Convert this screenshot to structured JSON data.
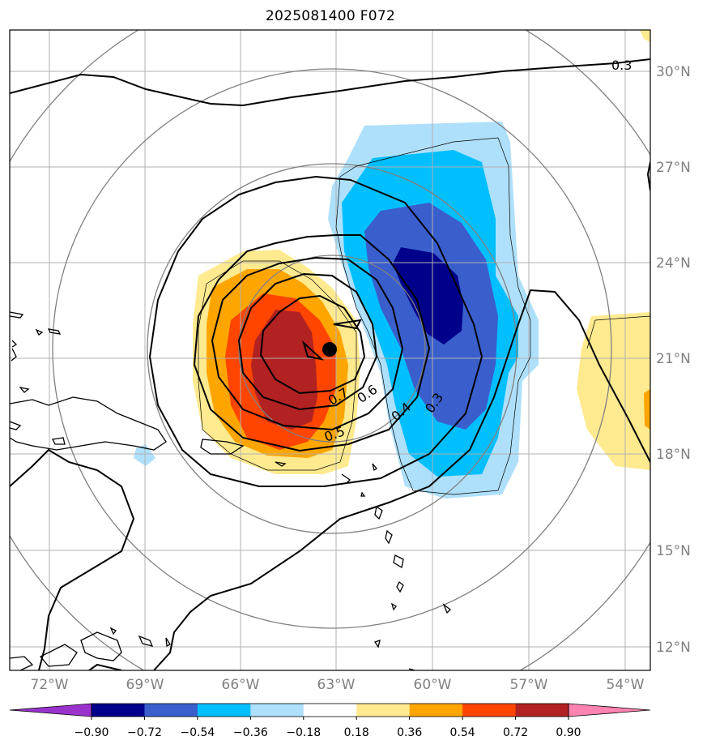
{
  "title": "2025081400 F072",
  "lat_labels": [
    "30°N",
    "27°N",
    "24°N",
    "21°N",
    "18°N",
    "15°N",
    "12°N"
  ],
  "lon_labels": [
    "72°W",
    "69°W",
    "66°W",
    "63°W",
    "60°W",
    "57°W",
    "54°W"
  ],
  "colorbar": {
    "ticks": [
      "−0.90",
      "−0.72",
      "−0.54",
      "−0.36",
      "−0.18",
      "0.18",
      "0.36",
      "0.54",
      "0.72",
      "0.90"
    ],
    "colors": [
      "#9933cc",
      "#00008b",
      "#3a5fcd",
      "#00bfff",
      "#aee0fb",
      "#ffffff",
      "#ffea8f",
      "#ffa500",
      "#ff4500",
      "#b22222",
      "#ff83b0"
    ]
  },
  "contour_labels": [
    "0.3",
    "0.7",
    "0.6",
    "0.5",
    "0.4",
    "0.3"
  ],
  "storm_center": {
    "lon": -63.2,
    "lat": 21.3
  }
}
